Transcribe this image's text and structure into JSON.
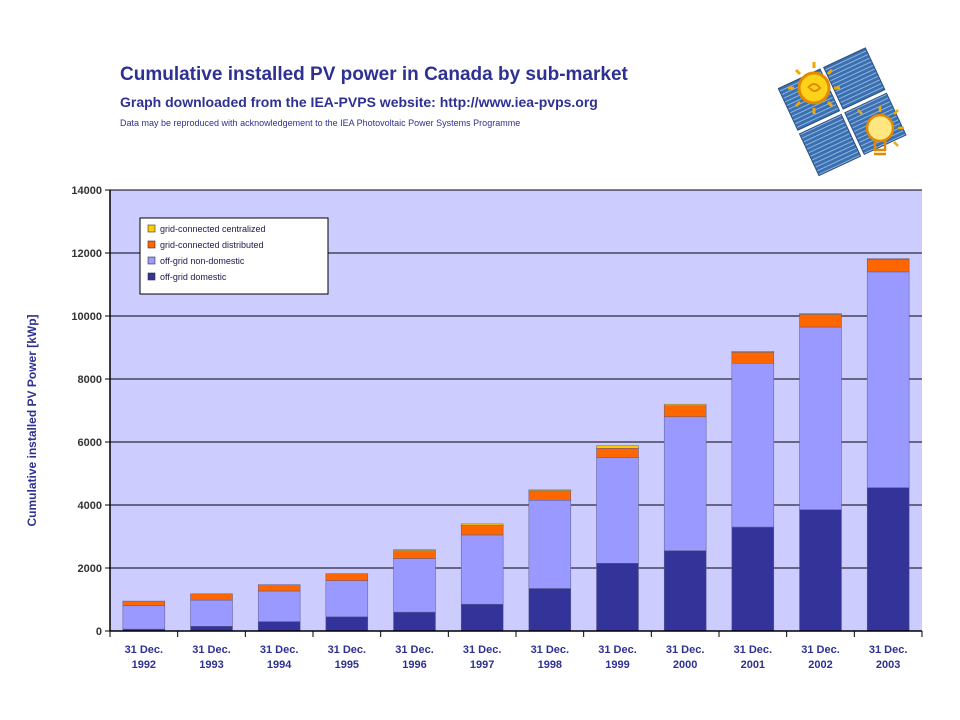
{
  "header": {
    "title": "Cumulative installed PV power in Canada by sub-market",
    "subtitle": "Graph downloaded from the IEA-PVPS website: http://www.iea-pvps.org",
    "note": "Data may be reproduced with acknowledgement to the IEA Photovoltaic Power Systems Programme"
  },
  "logo": {
    "icon": "iea-pvps-sun-bulb-logo"
  },
  "chart_data": {
    "type": "bar",
    "stacked": true,
    "title": "Cumulative installed PV power in Canada by sub-market",
    "ylabel": "Cumulative installed PV Power [kWp]",
    "xlabel": "",
    "ylim": [
      0,
      14000
    ],
    "yticks": [
      0,
      2000,
      4000,
      6000,
      8000,
      10000,
      12000,
      14000
    ],
    "grid": true,
    "legend_position": "top-left",
    "categories": [
      [
        "31 Dec.",
        "1992"
      ],
      [
        "31 Dec.",
        "1993"
      ],
      [
        "31 Dec.",
        "1994"
      ],
      [
        "31 Dec.",
        "1995"
      ],
      [
        "31 Dec.",
        "1996"
      ],
      [
        "31 Dec.",
        "1997"
      ],
      [
        "31 Dec.",
        "1998"
      ],
      [
        "31 Dec.",
        "1999"
      ],
      [
        "31 Dec.",
        "2000"
      ],
      [
        "31 Dec.",
        "2001"
      ],
      [
        "31 Dec.",
        "2002"
      ],
      [
        "31 Dec.",
        "2003"
      ]
    ],
    "series": [
      {
        "name": "off-grid domestic",
        "color": "#333399",
        "values": [
          60,
          150,
          300,
          450,
          600,
          850,
          1350,
          2150,
          2550,
          3300,
          3850,
          4550
        ]
      },
      {
        "name": "off-grid non-domestic",
        "color": "#9999ff",
        "values": [
          740,
          830,
          970,
          1150,
          1700,
          2200,
          2800,
          3350,
          4250,
          5200,
          5800,
          6850
        ]
      },
      {
        "name": "grid-connected distributed",
        "color": "#ff6600",
        "values": [
          150,
          200,
          200,
          220,
          250,
          300,
          300,
          300,
          350,
          350,
          400,
          400
        ]
      },
      {
        "name": "grid-connected centralized",
        "color": "#ffcc00",
        "values": [
          0,
          0,
          0,
          0,
          30,
          50,
          30,
          80,
          50,
          30,
          30,
          20
        ]
      }
    ],
    "legend_order": [
      "grid-connected centralized",
      "grid-connected distributed",
      "off-grid non-domestic",
      "off-grid domestic"
    ],
    "colors": {
      "plot_background": "#ccccff",
      "gridline": "#000000",
      "axis_text": "#2e3192"
    }
  }
}
